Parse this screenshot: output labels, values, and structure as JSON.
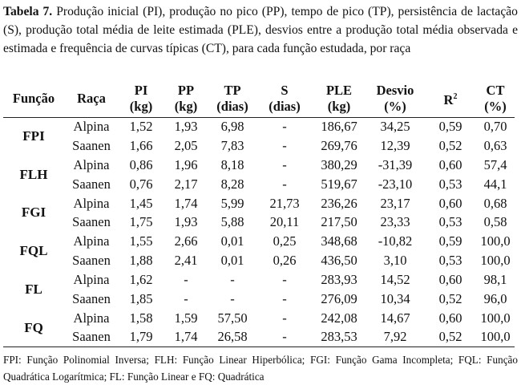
{
  "caption": {
    "label": "Tabela 7.",
    "text": " Produção inicial (PI), produção no pico (PP), tempo de pico (TP), persistência de lactação (S), produção total média de leite estimada (PLE), desvios entre a produção total média observada e estimada e frequência de curvas típicas (CT), para cada função estudada, por raça"
  },
  "table": {
    "headers": [
      {
        "top": "Função",
        "bottom": ""
      },
      {
        "top": "Raça",
        "bottom": ""
      },
      {
        "top": "PI",
        "bottom": "(kg)"
      },
      {
        "top": "PP",
        "bottom": "(kg)"
      },
      {
        "top": "TP",
        "bottom": "(dias)"
      },
      {
        "top": "S",
        "bottom": "(dias)"
      },
      {
        "top": "PLE",
        "bottom": "(kg)"
      },
      {
        "top": "Desvio",
        "bottom": "(%)"
      },
      {
        "top": "R",
        "sup": "2",
        "bottom": ""
      },
      {
        "top": "CT",
        "bottom": "(%)"
      }
    ],
    "groups": [
      {
        "funcao": "FPI",
        "rows": [
          [
            "Alpina",
            "1,52",
            "1,93",
            "6,98",
            "-",
            "186,67",
            "34,25",
            "0,59",
            "0,70"
          ],
          [
            "Saanen",
            "1,66",
            "2,05",
            "7,83",
            "-",
            "269,76",
            "12,39",
            "0,52",
            "0,63"
          ]
        ]
      },
      {
        "funcao": "FLH",
        "rows": [
          [
            "Alpina",
            "0,86",
            "1,96",
            "8,18",
            "-",
            "380,29",
            "-31,39",
            "0,60",
            "57,4"
          ],
          [
            "Saanen",
            "0,76",
            "2,17",
            "8,28",
            "-",
            "519,67",
            "-23,10",
            "0,53",
            "44,1"
          ]
        ]
      },
      {
        "funcao": "FGI",
        "rows": [
          [
            "Alpina",
            "1,45",
            "1,74",
            "5,99",
            "21,73",
            "236,26",
            "23,17",
            "0,60",
            "0,68"
          ],
          [
            "Saanen",
            "1,75",
            "1,93",
            "5,88",
            "20,11",
            "217,50",
            "23,33",
            "0,53",
            "0,58"
          ]
        ]
      },
      {
        "funcao": "FQL",
        "rows": [
          [
            "Alpina",
            "1,55",
            "2,66",
            "0,01",
            "0,25",
            "348,68",
            "-10,82",
            "0,59",
            "100,0"
          ],
          [
            "Saanen",
            "1,88",
            "2,41",
            "0,01",
            "0,26",
            "436,50",
            "3,10",
            "0,53",
            "100,0"
          ]
        ]
      },
      {
        "funcao": "FL",
        "rows": [
          [
            "Alpina",
            "1,62",
            "-",
            "-",
            "-",
            "283,93",
            "14,52",
            "0,60",
            "98,1"
          ],
          [
            "Saanen",
            "1,85",
            "-",
            "-",
            "-",
            "276,09",
            "10,34",
            "0,52",
            "96,0"
          ]
        ]
      },
      {
        "funcao": "FQ",
        "rows": [
          [
            "Alpina",
            "1,58",
            "1,59",
            "57,50",
            "-",
            "242,08",
            "14,67",
            "0,60",
            "100,0"
          ],
          [
            "Saanen",
            "1,79",
            "1,74",
            "26,58",
            "-",
            "283,53",
            "7,92",
            "0,52",
            "100,0"
          ]
        ]
      }
    ]
  },
  "footnote": "FPI: Função Polinomial Inversa; FLH: Função Linear Hiperbólica; FGI: Função Gama Incompleta; FQL: Função Quadrática Logarítmica; FL: Função Linear e FQ: Quadrática"
}
